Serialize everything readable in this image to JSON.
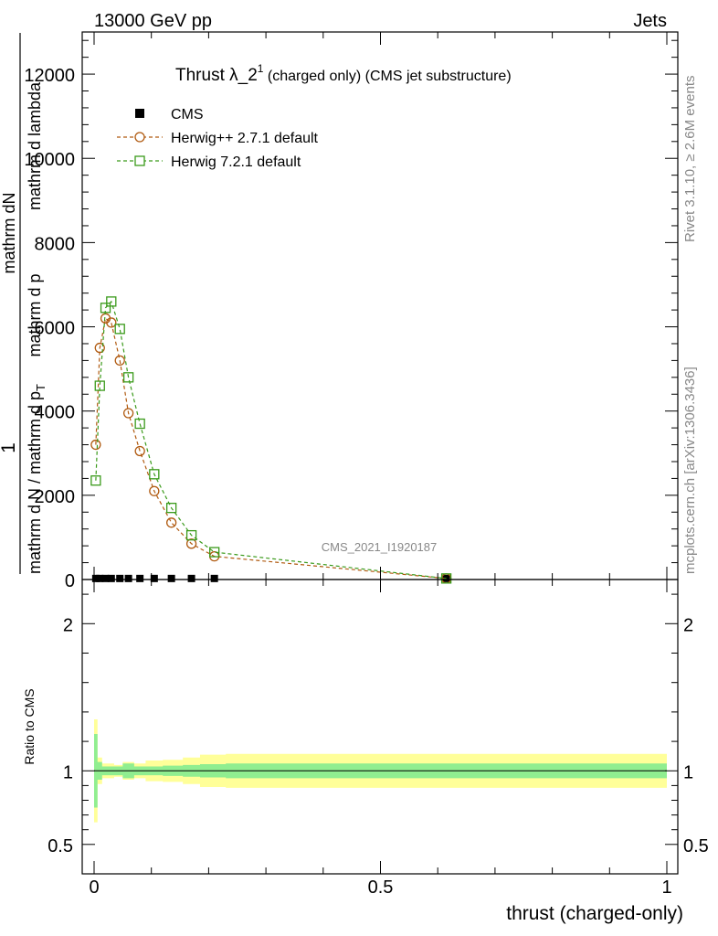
{
  "header": {
    "left": "13000 GeV pp",
    "right": "Jets"
  },
  "side": {
    "rivet": "Rivet 3.1.10, ≥ 2.6M events",
    "mcplots": "mcplots.cern.ch [arXiv:1306.3436]"
  },
  "chart_data": [
    {
      "type": "line",
      "title_main": "Thrust λ_2",
      "title_sup": "1",
      "title_rest": " (charged only) (CMS jet substructure)",
      "watermark": "CMS_2021_I1920187",
      "ylabel_lines": [
        "1",
        "mathrm d N / mathrm d p",
        "T",
        "mathrm d p",
        "mathrm d lambda",
        "mathrm dN"
      ],
      "xlim": [
        0,
        1
      ],
      "ylim": [
        0,
        13000
      ],
      "yticks": [
        0,
        2000,
        4000,
        6000,
        8000,
        10000,
        12000
      ],
      "ytick_labels": [
        "0",
        "2000",
        "4000",
        "6000",
        "8000",
        "10000",
        "12000"
      ],
      "legend": {
        "position": "top-left",
        "entries": [
          "CMS",
          "Herwig++ 2.7.1 default",
          "Herwig 7.2.1 default"
        ]
      },
      "series": [
        {
          "name": "CMS",
          "color": "#000000",
          "marker": "square-filled",
          "x": [
            0.003,
            0.01,
            0.02,
            0.03,
            0.045,
            0.06,
            0.08,
            0.105,
            0.135,
            0.17,
            0.21,
            0.615
          ],
          "y": [
            25,
            25,
            25,
            25,
            25,
            25,
            25,
            25,
            25,
            25,
            25,
            25
          ]
        },
        {
          "name": "Herwig++ 2.7.1 default",
          "color": "#b05a10",
          "marker": "circle-open",
          "x": [
            0.003,
            0.01,
            0.02,
            0.03,
            0.045,
            0.06,
            0.08,
            0.105,
            0.135,
            0.17,
            0.21,
            0.615
          ],
          "y": [
            3200,
            5500,
            6200,
            6100,
            5200,
            3950,
            3050,
            2100,
            1350,
            850,
            550,
            25
          ]
        },
        {
          "name": "Herwig 7.2.1 default",
          "color": "#3a9a1a",
          "marker": "square-open",
          "x": [
            0.003,
            0.01,
            0.02,
            0.03,
            0.045,
            0.06,
            0.08,
            0.105,
            0.135,
            0.17,
            0.21,
            0.615
          ],
          "y": [
            2350,
            4600,
            6450,
            6600,
            5950,
            4800,
            3700,
            2500,
            1700,
            1050,
            650,
            25
          ]
        }
      ]
    },
    {
      "type": "area",
      "ylabel": "Ratio to CMS",
      "xlabel": "thrust (charged-only)",
      "xlim": [
        0,
        1
      ],
      "ylim": [
        0.3,
        2.3
      ],
      "xticks": [
        0,
        0.5,
        1
      ],
      "xtick_labels": [
        "0",
        "0.5",
        "1"
      ],
      "yticks": [
        0.5,
        1,
        2
      ],
      "ytick_labels": [
        "0.5",
        "1",
        "2"
      ],
      "reference": 1,
      "band_x": [
        0,
        0.006,
        0.014,
        0.035,
        0.05,
        0.07,
        0.09,
        0.12,
        0.155,
        0.185,
        0.23,
        1.0
      ],
      "band_inner": [
        0.25,
        0.06,
        0.03,
        0.03,
        0.05,
        0.03,
        0.03,
        0.035,
        0.04,
        0.045,
        0.05,
        0.05
      ],
      "band_outer": [
        0.35,
        0.09,
        0.05,
        0.04,
        0.06,
        0.05,
        0.07,
        0.075,
        0.09,
        0.11,
        0.115,
        0.115
      ],
      "band_colors": {
        "inner": "#90ee90",
        "outer": "#ffff99"
      }
    }
  ]
}
